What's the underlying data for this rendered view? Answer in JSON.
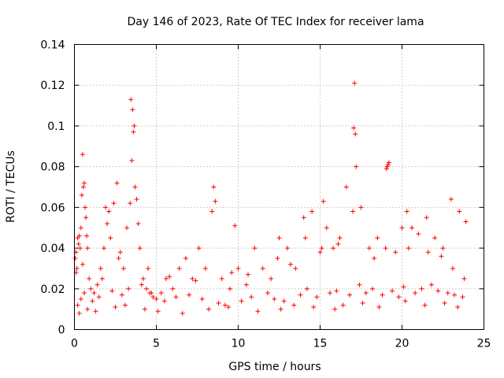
{
  "chart_data": {
    "type": "scatter",
    "title": "Day 146 of 2023, Rate Of TEC Index for receiver lama",
    "xlabel": "GPS time / hours",
    "ylabel": "ROTI / TECUs",
    "xlim": [
      0,
      25
    ],
    "ylim": [
      0,
      0.14
    ],
    "xticks": [
      0,
      5,
      10,
      15,
      20,
      25
    ],
    "xtick_labels": [
      "0",
      "5",
      "10",
      "15",
      "20",
      "25"
    ],
    "yticks": [
      0,
      0.02,
      0.04,
      0.06,
      0.08,
      0.1,
      0.12,
      0.14
    ],
    "ytick_labels": [
      "0",
      "0.02",
      "0.04",
      "0.06",
      "0.08",
      "0.1",
      "0.12",
      "0.14"
    ],
    "grid": true,
    "marker": "+",
    "color": "#ff0000",
    "series": [
      {
        "name": "ROTI",
        "x": [
          0.05,
          0.1,
          0.15,
          0.2,
          0.25,
          0.3,
          0.35,
          0.4,
          0.45,
          0.5,
          0.55,
          0.6,
          0.65,
          0.7,
          0.75,
          0.8,
          0.9,
          1.0,
          1.2,
          1.4,
          1.6,
          1.8,
          1.9,
          2.0,
          2.1,
          2.2,
          2.4,
          2.6,
          2.8,
          3.0,
          3.2,
          3.4,
          3.5,
          3.6,
          3.7,
          3.8,
          3.9,
          4.0,
          4.2,
          4.4,
          4.6,
          4.8,
          5.0,
          5.3,
          5.6,
          6.0,
          6.4,
          6.8,
          7.2,
          7.6,
          8.0,
          8.4,
          8.5,
          8.6,
          9.0,
          9.5,
          9.8,
          10.0,
          10.5,
          11.0,
          11.5,
          12.0,
          12.5,
          13.0,
          13.5,
          14.0,
          14.5,
          15.0,
          15.2,
          15.4,
          15.8,
          16.2,
          16.6,
          17.0,
          17.1,
          17.2,
          17.5,
          18.0,
          18.5,
          19.0,
          19.1,
          19.2,
          19.6,
          20.0,
          20.3,
          20.6,
          21.0,
          21.5,
          22.0,
          22.5,
          23.0,
          23.5,
          23.9,
          0.2,
          0.4,
          0.6,
          1.1,
          1.5,
          2.3,
          2.9,
          3.3,
          4.1,
          4.7,
          5.5,
          6.2,
          7.0,
          7.8,
          8.8,
          9.2,
          10.2,
          10.8,
          11.8,
          12.2,
          12.8,
          13.8,
          14.2,
          14.8,
          15.6,
          16.0,
          16.8,
          17.4,
          17.8,
          18.2,
          18.8,
          19.4,
          19.8,
          20.1,
          20.8,
          21.2,
          21.8,
          22.2,
          22.8,
          23.2,
          23.7,
          0.3,
          0.8,
          1.3,
          2.5,
          3.1,
          4.3,
          5.1,
          6.6,
          8.2,
          9.4,
          11.2,
          12.6,
          13.4,
          14.6,
          15.9,
          16.4,
          17.6,
          18.6,
          20.2,
          21.4,
          22.6,
          23.4,
          0.1,
          0.5,
          1.7,
          2.7,
          3.45,
          3.55,
          3.65,
          4.5,
          5.8,
          7.4,
          9.6,
          10.6,
          12.4,
          13.2,
          14.1,
          15.1,
          16.1,
          17.05,
          17.15,
          18.3,
          19.05,
          19.15,
          20.4,
          21.6,
          22.4,
          23.1,
          23.8
        ],
        "y": [
          0.035,
          0.038,
          0.03,
          0.045,
          0.042,
          0.046,
          0.04,
          0.05,
          0.066,
          0.086,
          0.07,
          0.072,
          0.06,
          0.055,
          0.046,
          0.04,
          0.025,
          0.02,
          0.018,
          0.022,
          0.03,
          0.04,
          0.06,
          0.052,
          0.058,
          0.045,
          0.062,
          0.072,
          0.038,
          0.03,
          0.05,
          0.062,
          0.083,
          0.097,
          0.07,
          0.064,
          0.052,
          0.04,
          0.025,
          0.02,
          0.018,
          0.016,
          0.015,
          0.018,
          0.025,
          0.02,
          0.03,
          0.035,
          0.025,
          0.04,
          0.03,
          0.058,
          0.07,
          0.063,
          0.025,
          0.02,
          0.051,
          0.03,
          0.022,
          0.04,
          0.03,
          0.025,
          0.045,
          0.04,
          0.03,
          0.055,
          0.058,
          0.038,
          0.063,
          0.05,
          0.04,
          0.045,
          0.07,
          0.058,
          0.121,
          0.08,
          0.06,
          0.04,
          0.045,
          0.04,
          0.08,
          0.082,
          0.038,
          0.05,
          0.058,
          0.05,
          0.047,
          0.055,
          0.045,
          0.04,
          0.064,
          0.058,
          0.053,
          0.012,
          0.015,
          0.018,
          0.014,
          0.016,
          0.019,
          0.017,
          0.02,
          0.022,
          0.018,
          0.014,
          0.016,
          0.017,
          0.015,
          0.013,
          0.012,
          0.014,
          0.016,
          0.018,
          0.015,
          0.014,
          0.017,
          0.02,
          0.016,
          0.018,
          0.019,
          0.017,
          0.022,
          0.018,
          0.02,
          0.017,
          0.019,
          0.016,
          0.021,
          0.018,
          0.02,
          0.022,
          0.019,
          0.018,
          0.017,
          0.016,
          0.008,
          0.01,
          0.009,
          0.011,
          0.012,
          0.01,
          0.009,
          0.008,
          0.01,
          0.011,
          0.009,
          0.01,
          0.012,
          0.011,
          0.01,
          0.012,
          0.013,
          0.011,
          0.014,
          0.012,
          0.013,
          0.011,
          0.028,
          0.032,
          0.025,
          0.035,
          0.113,
          0.108,
          0.1,
          0.03,
          0.026,
          0.024,
          0.028,
          0.027,
          0.035,
          0.032,
          0.045,
          0.04,
          0.042,
          0.099,
          0.096,
          0.035,
          0.079,
          0.081,
          0.04,
          0.038,
          0.036,
          0.03,
          0.025
        ]
      }
    ]
  }
}
